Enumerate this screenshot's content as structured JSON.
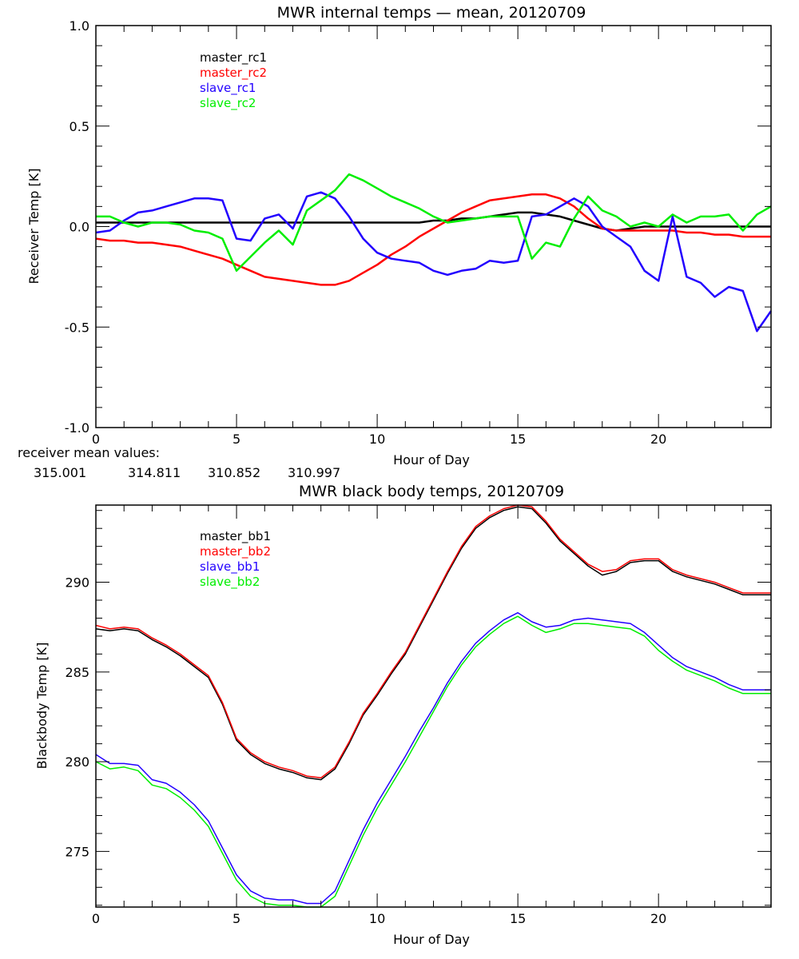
{
  "chart_data": [
    {
      "type": "line",
      "title": "MWR internal temps — mean, 20120709",
      "xlabel": "Hour of Day",
      "ylabel": "Receiver Temp [K]",
      "xlim": [
        0,
        24
      ],
      "ylim": [
        -1.0,
        1.0
      ],
      "x_ticks": [
        "0",
        "5",
        "10",
        "15",
        "20"
      ],
      "x_tick_values": [
        0,
        5,
        10,
        15,
        20
      ],
      "y_ticks": [
        "-1.0",
        "-0.5",
        "0.0",
        "0.5",
        "1.0"
      ],
      "y_tick_values": [
        -1.0,
        -0.5,
        0.0,
        0.5,
        1.0
      ],
      "legend_position": "top-left",
      "x": [
        0,
        0.5,
        1,
        1.5,
        2,
        2.5,
        3,
        3.5,
        4,
        4.5,
        5,
        5.5,
        6,
        6.5,
        7,
        7.5,
        8,
        8.5,
        9,
        9.5,
        10,
        10.5,
        11,
        11.5,
        12,
        12.5,
        13,
        13.5,
        14,
        14.5,
        15,
        15.5,
        16,
        16.5,
        17,
        17.5,
        18,
        18.5,
        19,
        19.5,
        20,
        20.5,
        21,
        21.5,
        22,
        22.5,
        23,
        23.5,
        24
      ],
      "series": [
        {
          "name": "master_rc1",
          "color": "#000000",
          "values": [
            0.02,
            0.02,
            0.02,
            0.02,
            0.02,
            0.02,
            0.02,
            0.02,
            0.02,
            0.02,
            0.02,
            0.02,
            0.02,
            0.02,
            0.02,
            0.02,
            0.02,
            0.02,
            0.02,
            0.02,
            0.02,
            0.02,
            0.02,
            0.02,
            0.03,
            0.03,
            0.04,
            0.04,
            0.05,
            0.06,
            0.07,
            0.07,
            0.06,
            0.05,
            0.03,
            0.01,
            -0.01,
            -0.02,
            -0.01,
            0.0,
            0.0,
            0.0,
            0.0,
            0.0,
            0.0,
            0.0,
            0.0,
            0.0,
            0.0
          ]
        },
        {
          "name": "master_rc2",
          "color": "#ff0000",
          "values": [
            -0.06,
            -0.07,
            -0.07,
            -0.08,
            -0.08,
            -0.09,
            -0.1,
            -0.12,
            -0.14,
            -0.16,
            -0.19,
            -0.22,
            -0.25,
            -0.26,
            -0.27,
            -0.28,
            -0.29,
            -0.29,
            -0.27,
            -0.23,
            -0.19,
            -0.14,
            -0.1,
            -0.05,
            -0.01,
            0.03,
            0.07,
            0.1,
            0.13,
            0.14,
            0.15,
            0.16,
            0.16,
            0.14,
            0.1,
            0.04,
            -0.01,
            -0.02,
            -0.02,
            -0.02,
            -0.02,
            -0.02,
            -0.03,
            -0.03,
            -0.04,
            -0.04,
            -0.05,
            -0.05,
            -0.05
          ]
        },
        {
          "name": "slave_rc1",
          "color": "#2200ff",
          "values": [
            -0.03,
            -0.02,
            0.03,
            0.07,
            0.08,
            0.1,
            0.12,
            0.14,
            0.14,
            0.13,
            -0.06,
            -0.07,
            0.04,
            0.06,
            -0.01,
            0.15,
            0.17,
            0.14,
            0.05,
            -0.06,
            -0.13,
            -0.16,
            -0.17,
            -0.18,
            -0.22,
            -0.24,
            -0.22,
            -0.21,
            -0.17,
            -0.18,
            -0.17,
            0.05,
            0.06,
            0.1,
            0.14,
            0.1,
            0.0,
            -0.05,
            -0.1,
            -0.22,
            -0.27,
            0.05,
            -0.25,
            -0.28,
            -0.35,
            -0.3,
            -0.32,
            -0.52,
            -0.42
          ]
        },
        {
          "name": "slave_rc2",
          "color": "#00ee00",
          "values": [
            0.05,
            0.05,
            0.02,
            0.0,
            0.02,
            0.02,
            0.01,
            -0.02,
            -0.03,
            -0.06,
            -0.22,
            -0.15,
            -0.08,
            -0.02,
            -0.09,
            0.08,
            0.13,
            0.18,
            0.26,
            0.23,
            0.19,
            0.15,
            0.12,
            0.09,
            0.05,
            0.02,
            0.03,
            0.04,
            0.05,
            0.05,
            0.05,
            -0.16,
            -0.08,
            -0.1,
            0.04,
            0.15,
            0.08,
            0.05,
            0.0,
            0.02,
            0.0,
            0.06,
            0.02,
            0.05,
            0.05,
            0.06,
            -0.02,
            0.06,
            0.1
          ]
        }
      ],
      "annotation_label": "receiver mean values:",
      "annotation_values": [
        {
          "text": "315.001",
          "color": "#000000"
        },
        {
          "text": "314.811",
          "color": "#ff0000"
        },
        {
          "text": "310.852",
          "color": "#2200ff"
        },
        {
          "text": "310.997",
          "color": "#00ee00"
        }
      ]
    },
    {
      "type": "line",
      "title": "MWR black body temps, 20120709",
      "xlabel": "Hour of Day",
      "ylabel": "Blackbody Temp [K]",
      "xlim": [
        0,
        24
      ],
      "ylim": [
        271.9,
        294.3
      ],
      "x_ticks": [
        "0",
        "5",
        "10",
        "15",
        "20"
      ],
      "x_tick_values": [
        0,
        5,
        10,
        15,
        20
      ],
      "y_ticks": [
        "275",
        "280",
        "285",
        "290"
      ],
      "y_tick_values": [
        275,
        280,
        285,
        290
      ],
      "legend_position": "top-left",
      "x": [
        0,
        0.5,
        1,
        1.5,
        2,
        2.5,
        3,
        3.5,
        4,
        4.5,
        5,
        5.5,
        6,
        6.5,
        7,
        7.5,
        8,
        8.5,
        9,
        9.5,
        10,
        10.5,
        11,
        11.5,
        12,
        12.5,
        13,
        13.5,
        14,
        14.5,
        15,
        15.5,
        16,
        16.5,
        17,
        17.5,
        18,
        18.5,
        19,
        19.5,
        20,
        20.5,
        21,
        21.5,
        22,
        22.5,
        23,
        23.5,
        24
      ],
      "series": [
        {
          "name": "master_bb1",
          "color": "#000000",
          "values": [
            287.4,
            287.3,
            287.4,
            287.3,
            286.8,
            286.4,
            285.9,
            285.3,
            284.7,
            283.2,
            281.2,
            280.4,
            279.9,
            279.6,
            279.4,
            279.1,
            279.0,
            279.6,
            281.0,
            282.6,
            283.7,
            284.9,
            286.0,
            287.5,
            289.0,
            290.5,
            291.9,
            293.0,
            293.6,
            294.0,
            294.2,
            294.1,
            293.3,
            292.3,
            291.6,
            290.9,
            290.4,
            290.6,
            291.1,
            291.2,
            291.2,
            290.6,
            290.3,
            290.1,
            289.9,
            289.6,
            289.3,
            289.3,
            289.3
          ]
        },
        {
          "name": "master_bb2",
          "color": "#ff0000",
          "values": [
            287.6,
            287.4,
            287.5,
            287.4,
            286.9,
            286.5,
            286.0,
            285.4,
            284.8,
            283.3,
            281.3,
            280.5,
            280.0,
            279.7,
            279.5,
            279.2,
            279.1,
            279.7,
            281.1,
            282.7,
            283.8,
            285.0,
            286.1,
            287.6,
            289.1,
            290.6,
            292.0,
            293.1,
            293.7,
            294.1,
            294.3,
            294.2,
            293.4,
            292.4,
            291.7,
            291.0,
            290.6,
            290.7,
            291.2,
            291.3,
            291.3,
            290.7,
            290.4,
            290.2,
            290.0,
            289.7,
            289.4,
            289.4,
            289.4
          ]
        },
        {
          "name": "slave_bb1",
          "color": "#2200ff",
          "values": [
            280.4,
            279.9,
            279.9,
            279.8,
            279.0,
            278.8,
            278.3,
            277.6,
            276.7,
            275.2,
            273.7,
            272.8,
            272.4,
            272.3,
            272.3,
            272.1,
            272.1,
            272.8,
            274.5,
            276.2,
            277.7,
            279.0,
            280.3,
            281.7,
            283.0,
            284.4,
            285.6,
            286.6,
            287.3,
            287.9,
            288.3,
            287.8,
            287.5,
            287.6,
            287.9,
            288.0,
            287.9,
            287.8,
            287.7,
            287.2,
            286.5,
            285.8,
            285.3,
            285.0,
            284.7,
            284.3,
            284.0,
            284.0,
            284.0
          ]
        },
        {
          "name": "slave_bb2",
          "color": "#00ee00",
          "values": [
            280.0,
            279.6,
            279.7,
            279.5,
            278.7,
            278.5,
            278.0,
            277.3,
            276.4,
            274.9,
            273.4,
            272.5,
            272.1,
            272.0,
            272.0,
            271.9,
            271.9,
            272.5,
            274.2,
            275.9,
            277.4,
            278.7,
            280.0,
            281.4,
            282.8,
            284.2,
            285.4,
            286.4,
            287.1,
            287.7,
            288.1,
            287.6,
            287.2,
            287.4,
            287.7,
            287.7,
            287.6,
            287.5,
            287.4,
            287.0,
            286.2,
            285.6,
            285.1,
            284.8,
            284.5,
            284.1,
            283.8,
            283.8,
            283.8
          ]
        }
      ]
    }
  ]
}
